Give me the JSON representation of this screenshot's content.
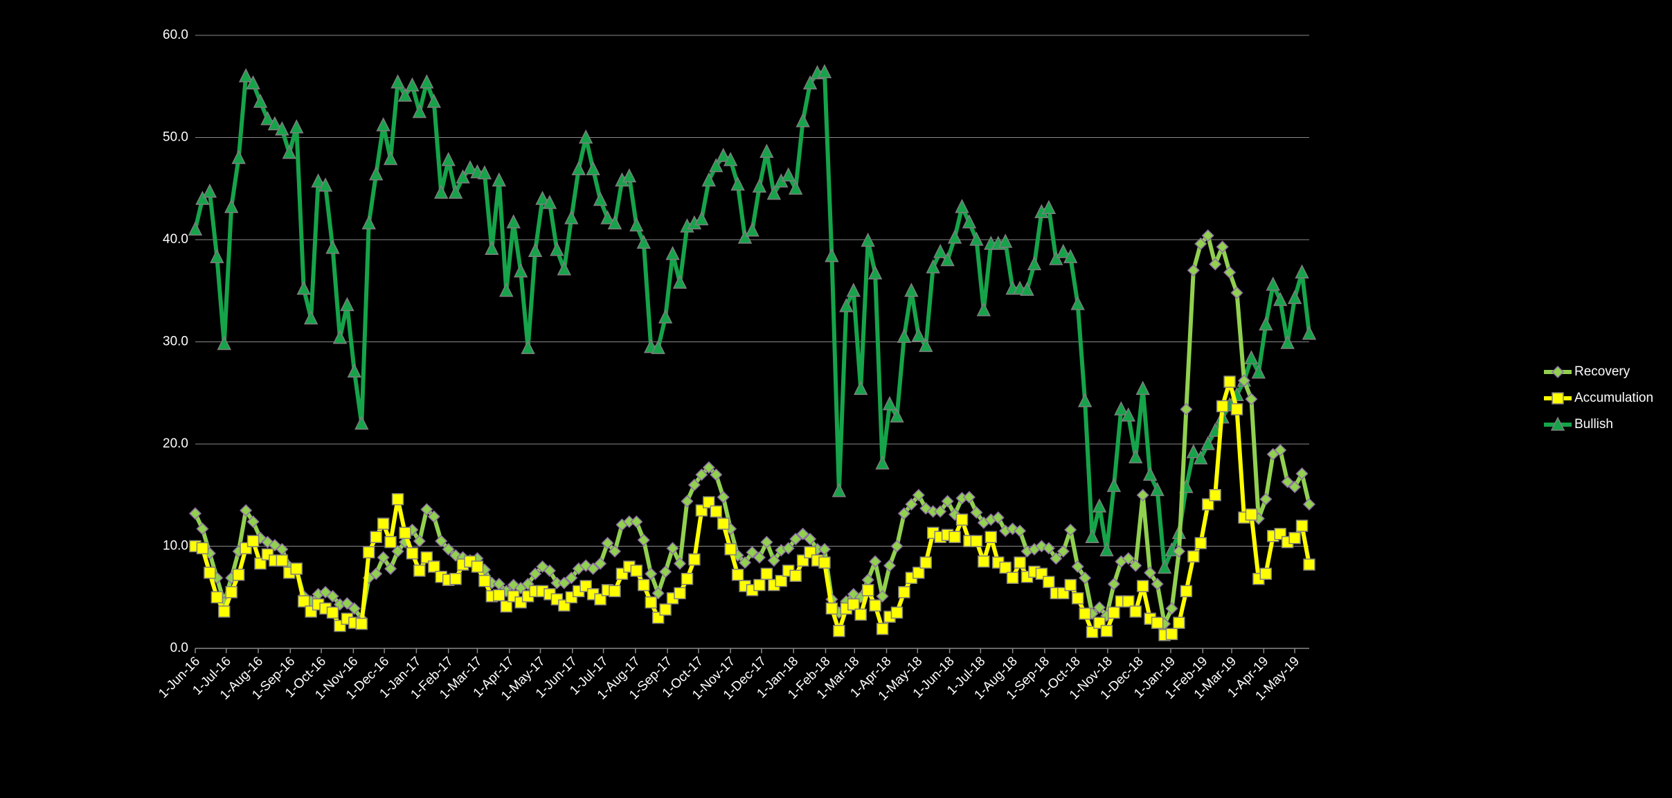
{
  "chart_data": {
    "type": "line",
    "x": [
      "2016-06-01",
      "2016-06-08",
      "2016-06-15",
      "2016-06-22",
      "2016-06-29",
      "2016-07-06",
      "2016-07-13",
      "2016-07-20",
      "2016-07-27",
      "2016-08-03",
      "2016-08-10",
      "2016-08-17",
      "2016-08-24",
      "2016-08-31",
      "2016-09-07",
      "2016-09-14",
      "2016-09-21",
      "2016-09-28",
      "2016-10-05",
      "2016-10-12",
      "2016-10-19",
      "2016-10-26",
      "2016-11-02",
      "2016-11-09",
      "2016-11-16",
      "2016-11-23",
      "2016-11-30",
      "2016-12-07",
      "2016-12-14",
      "2016-12-21",
      "2016-12-28",
      "2017-01-04",
      "2017-01-11",
      "2017-01-18",
      "2017-01-25",
      "2017-02-01",
      "2017-02-08",
      "2017-02-15",
      "2017-02-22",
      "2017-03-01",
      "2017-03-08",
      "2017-03-15",
      "2017-03-22",
      "2017-03-29",
      "2017-04-05",
      "2017-04-12",
      "2017-04-19",
      "2017-04-26",
      "2017-05-03",
      "2017-05-10",
      "2017-05-17",
      "2017-05-24",
      "2017-05-31",
      "2017-06-07",
      "2017-06-14",
      "2017-06-21",
      "2017-06-28",
      "2017-07-05",
      "2017-07-12",
      "2017-07-19",
      "2017-07-26",
      "2017-08-02",
      "2017-08-09",
      "2017-08-16",
      "2017-08-23",
      "2017-08-30",
      "2017-09-06",
      "2017-09-13",
      "2017-09-20",
      "2017-09-27",
      "2017-10-04",
      "2017-10-11",
      "2017-10-18",
      "2017-10-25",
      "2017-11-01",
      "2017-11-08",
      "2017-11-15",
      "2017-11-22",
      "2017-11-29",
      "2017-12-06",
      "2017-12-13",
      "2017-12-20",
      "2017-12-27",
      "2018-01-03",
      "2018-01-10",
      "2018-01-17",
      "2018-01-24",
      "2018-01-31",
      "2018-02-07",
      "2018-02-14",
      "2018-02-21",
      "2018-02-28",
      "2018-03-07",
      "2018-03-14",
      "2018-03-21",
      "2018-03-28",
      "2018-04-04",
      "2018-04-11",
      "2018-04-18",
      "2018-04-25",
      "2018-05-02",
      "2018-05-09",
      "2018-05-16",
      "2018-05-23",
      "2018-05-30",
      "2018-06-06",
      "2018-06-13",
      "2018-06-20",
      "2018-06-27",
      "2018-07-04",
      "2018-07-11",
      "2018-07-18",
      "2018-07-25",
      "2018-08-01",
      "2018-08-08",
      "2018-08-15",
      "2018-08-22",
      "2018-08-29",
      "2018-09-05",
      "2018-09-12",
      "2018-09-19",
      "2018-09-26",
      "2018-10-03",
      "2018-10-10",
      "2018-10-17",
      "2018-10-24",
      "2018-10-31",
      "2018-11-07",
      "2018-11-14",
      "2018-11-21",
      "2018-11-28",
      "2018-12-05",
      "2018-12-12",
      "2018-12-19",
      "2018-12-26",
      "2019-01-02",
      "2019-01-09",
      "2019-01-16",
      "2019-01-23",
      "2019-01-30",
      "2019-02-06",
      "2019-02-13",
      "2019-02-20",
      "2019-02-27",
      "2019-03-06",
      "2019-03-13",
      "2019-03-20",
      "2019-03-27",
      "2019-04-03",
      "2019-04-10",
      "2019-04-17",
      "2019-04-24",
      "2019-05-01",
      "2019-05-08",
      "2019-05-15"
    ],
    "series": [
      {
        "name": "Recovery",
        "color": "#92d050",
        "marker": "diamond",
        "values": [
          13.2,
          11.7,
          9.3,
          6.9,
          4.5,
          6.9,
          9.5,
          13.5,
          12.4,
          10.8,
          10.4,
          10.1,
          9.7,
          8,
          7.7,
          5.1,
          4.6,
          5.3,
          5.5,
          5.1,
          4.3,
          4.4,
          3.9,
          2.9,
          6.9,
          7.3,
          8.9,
          7.8,
          9.5,
          10.4,
          11.6,
          10.5,
          13.6,
          12.9,
          10.5,
          9.7,
          9.1,
          8.9,
          8.6,
          8.8,
          7.7,
          6.4,
          6.3,
          5.6,
          6.2,
          5.9,
          6.3,
          7.3,
          8,
          7.6,
          6.4,
          6.4,
          6.9,
          7.8,
          8.1,
          7.8,
          8.3,
          10.3,
          9.5,
          12.1,
          12.4,
          12.4,
          10.6,
          7.3,
          5.4,
          7.5,
          9.8,
          8.3,
          14.4,
          16,
          17,
          17.7,
          17,
          14.8,
          11.7,
          9.1,
          8.4,
          9.4,
          8.9,
          10.4,
          8.6,
          9.6,
          9.8,
          10.7,
          11.2,
          10.7,
          9.7,
          9.7,
          4.8,
          3.5,
          4.6,
          5.3,
          5,
          6.7,
          8.5,
          5.1,
          8.1,
          10,
          13.2,
          14.1,
          15,
          13.7,
          13.4,
          13.4,
          14.4,
          13.1,
          14.7,
          14.8,
          13.3,
          12.3,
          12.6,
          12.8,
          11.5,
          11.7,
          11.5,
          9.5,
          9.7,
          10,
          9.8,
          8.8,
          9.5,
          11.6,
          8,
          6.9,
          3.4,
          4,
          3.2,
          6.3,
          8.5,
          8.8,
          8.1,
          15,
          7.4,
          6.3,
          2.4,
          3.9,
          9.5,
          23.4,
          37,
          39.6,
          40.4,
          37.6,
          39.3,
          36.8,
          34.8,
          26.2,
          24.4,
          12.7,
          14.6,
          19,
          19.4,
          16.3,
          15.8,
          17.1,
          14.1
        ]
      },
      {
        "name": "Accumulation",
        "color": "#ffff00",
        "marker": "square",
        "values": [
          10,
          9.8,
          7.4,
          5,
          3.6,
          5.5,
          7.2,
          9.8,
          10.5,
          8.3,
          9.2,
          8.6,
          8.6,
          7.4,
          7.8,
          4.6,
          3.6,
          4.3,
          3.9,
          3.5,
          2.2,
          2.9,
          2.5,
          2.4,
          9.4,
          10.9,
          12.2,
          10.4,
          14.6,
          11.3,
          9.3,
          7.6,
          8.9,
          8,
          7,
          6.7,
          6.8,
          8.2,
          8.5,
          8,
          6.6,
          5.1,
          5.2,
          4.1,
          5.1,
          4.5,
          5.1,
          5.6,
          5.6,
          5.3,
          4.8,
          4.2,
          5,
          5.6,
          6.1,
          5.3,
          4.8,
          5.7,
          5.6,
          7.3,
          8,
          7.6,
          6.2,
          4.5,
          3,
          3.8,
          4.9,
          5.4,
          6.8,
          8.7,
          13.5,
          14.3,
          13.4,
          12.2,
          9.7,
          7.2,
          6.1,
          5.7,
          6.2,
          7.3,
          6.2,
          6.6,
          7.6,
          7.1,
          8.6,
          9.4,
          8.6,
          8.4,
          3.9,
          1.7,
          3.9,
          4.3,
          3.3,
          5.7,
          4.2,
          1.9,
          3.1,
          3.5,
          5.5,
          6.9,
          7.4,
          8.4,
          11.3,
          10.9,
          11.1,
          10.9,
          12.6,
          10.5,
          10.5,
          8.5,
          10.9,
          8.4,
          7.9,
          6.9,
          8.4,
          7,
          7.5,
          7.3,
          6.5,
          5.4,
          5.4,
          6.2,
          4.9,
          3.4,
          1.6,
          2.5,
          1.7,
          3.5,
          4.6,
          4.6,
          3.6,
          6.1,
          2.9,
          2.5,
          1.3,
          1.4,
          2.5,
          5.6,
          9,
          10.3,
          14.1,
          15,
          23.7,
          26.1,
          23.4,
          12.8,
          13.1,
          6.8,
          7.3,
          11,
          11.2,
          10.4,
          10.8,
          12,
          8.2
        ]
      },
      {
        "name": "Bullish",
        "color": "#16a34a",
        "marker": "triangle",
        "values": [
          41,
          44,
          44.7,
          38.3,
          29.8,
          43.2,
          48,
          56,
          55.3,
          53.5,
          51.8,
          51.3,
          50.8,
          48.5,
          51,
          35.2,
          32.3,
          45.7,
          45.3,
          39.2,
          30.4,
          33.6,
          27.1,
          22,
          41.6,
          46.4,
          51.2,
          47.9,
          55.4,
          54.1,
          55.1,
          52.5,
          55.4,
          53.5,
          44.6,
          47.8,
          44.6,
          46.1,
          47,
          46.6,
          46.5,
          39.1,
          45.8,
          35,
          41.7,
          36.9,
          29.4,
          38.9,
          44,
          43.6,
          39,
          37.1,
          42.1,
          46.9,
          50,
          46.9,
          43.9,
          42.1,
          41.6,
          45.8,
          46.2,
          41.4,
          39.7,
          29.5,
          29.4,
          32.4,
          38.6,
          35.8,
          41.3,
          41.6,
          42,
          45.8,
          47.2,
          48.2,
          47.8,
          45.4,
          40.2,
          40.9,
          45.2,
          48.6,
          44.5,
          45.7,
          46.3,
          45,
          51.6,
          55.3,
          56.3,
          56.4,
          38.4,
          15.4,
          33.5,
          35,
          25.4,
          39.9,
          36.7,
          18.1,
          23.9,
          22.7,
          30.5,
          35,
          30.6,
          29.6,
          37.3,
          38.8,
          38,
          40.2,
          43.2,
          41.7,
          40,
          33.1,
          39.6,
          39.6,
          39.8,
          35.2,
          35.2,
          35.1,
          37.6,
          42.7,
          43.1,
          38.1,
          38.8,
          38.3,
          33.7,
          24.2,
          10.9,
          13.9,
          9.6,
          15.9,
          23.4,
          22.8,
          18.7,
          25.4,
          17,
          15.5,
          7.9,
          9.6,
          11.3,
          15.8,
          19.2,
          18.6,
          20,
          21.3,
          22.6,
          23.8,
          24.8,
          26.2,
          28.4,
          27,
          31.7,
          35.6,
          34.1,
          29.9,
          34.3,
          36.8,
          30.8
        ]
      }
    ],
    "xlim": [
      "2016-06-01",
      "2019-05-15"
    ],
    "xticks": [
      {
        "value": "2016-06-01",
        "label": "1-Jun-16"
      },
      {
        "value": "2016-07-01",
        "label": "1-Jul-16"
      },
      {
        "value": "2016-08-01",
        "label": "1-Aug-16"
      },
      {
        "value": "2016-09-01",
        "label": "1-Sep-16"
      },
      {
        "value": "2016-10-01",
        "label": "1-Oct-16"
      },
      {
        "value": "2016-11-01",
        "label": "1-Nov-16"
      },
      {
        "value": "2016-12-01",
        "label": "1-Dec-16"
      },
      {
        "value": "2017-01-01",
        "label": "1-Jan-17"
      },
      {
        "value": "2017-02-01",
        "label": "1-Feb-17"
      },
      {
        "value": "2017-03-01",
        "label": "1-Mar-17"
      },
      {
        "value": "2017-04-01",
        "label": "1-Apr-17"
      },
      {
        "value": "2017-05-01",
        "label": "1-May-17"
      },
      {
        "value": "2017-06-01",
        "label": "1-Jun-17"
      },
      {
        "value": "2017-07-01",
        "label": "1-Jul-17"
      },
      {
        "value": "2017-08-01",
        "label": "1-Aug-17"
      },
      {
        "value": "2017-09-01",
        "label": "1-Sep-17"
      },
      {
        "value": "2017-10-01",
        "label": "1-Oct-17"
      },
      {
        "value": "2017-11-01",
        "label": "1-Nov-17"
      },
      {
        "value": "2017-12-01",
        "label": "1-Dec-17"
      },
      {
        "value": "2018-01-01",
        "label": "1-Jan-18"
      },
      {
        "value": "2018-02-01",
        "label": "1-Feb-18"
      },
      {
        "value": "2018-03-01",
        "label": "1-Mar-18"
      },
      {
        "value": "2018-04-01",
        "label": "1-Apr-18"
      },
      {
        "value": "2018-05-01",
        "label": "1-May-18"
      },
      {
        "value": "2018-06-01",
        "label": "1-Jun-18"
      },
      {
        "value": "2018-07-01",
        "label": "1-Jul-18"
      },
      {
        "value": "2018-08-01",
        "label": "1-Aug-18"
      },
      {
        "value": "2018-09-01",
        "label": "1-Sep-18"
      },
      {
        "value": "2018-10-01",
        "label": "1-Oct-18"
      },
      {
        "value": "2018-11-01",
        "label": "1-Nov-18"
      },
      {
        "value": "2018-12-01",
        "label": "1-Dec-18"
      },
      {
        "value": "2019-01-01",
        "label": "1-Jan-19"
      },
      {
        "value": "2019-02-01",
        "label": "1-Feb-19"
      },
      {
        "value": "2019-03-01",
        "label": "1-Mar-19"
      },
      {
        "value": "2019-04-01",
        "label": "1-Apr-19"
      },
      {
        "value": "2019-05-01",
        "label": "1-May-19"
      }
    ],
    "ylim": [
      0,
      60
    ],
    "yticks": [
      {
        "value": 0,
        "label": "0.0"
      },
      {
        "value": 10,
        "label": "10.0"
      },
      {
        "value": 20,
        "label": "20.0"
      },
      {
        "value": 30,
        "label": "30.0"
      },
      {
        "value": 40,
        "label": "40.0"
      },
      {
        "value": 50,
        "label": "50.0"
      },
      {
        "value": 60,
        "label": "60.0"
      }
    ],
    "grid": true,
    "legend": "right"
  }
}
